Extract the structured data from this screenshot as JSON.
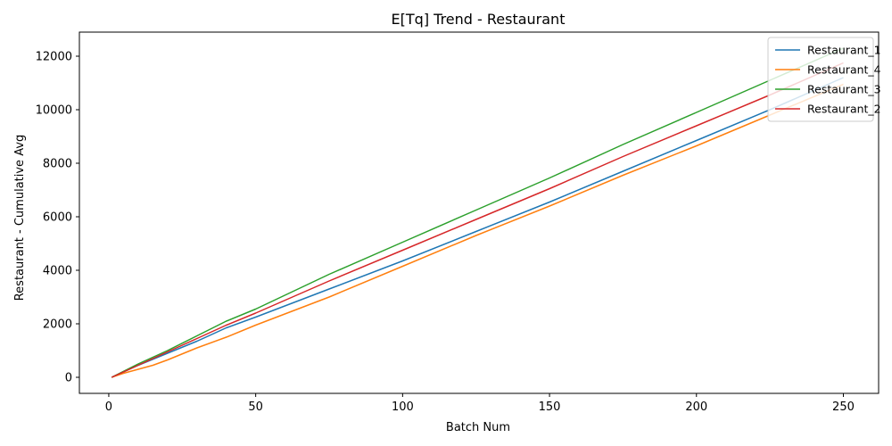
{
  "chart_data": {
    "type": "line",
    "title": "E[Tq] Trend - Restaurant",
    "xlabel": "Batch Num",
    "ylabel": "Restaurant - Cumulative Avg",
    "xlim": [
      -10,
      262
    ],
    "ylim": [
      -600,
      12900
    ],
    "xticks": [
      0,
      50,
      100,
      150,
      200,
      250
    ],
    "yticks": [
      0,
      2000,
      4000,
      6000,
      8000,
      10000,
      12000
    ],
    "grid": false,
    "legend_position": "top-right",
    "series": [
      {
        "name": "Restaurant_1",
        "color": "#1f77b4",
        "x": [
          1,
          10,
          20,
          30,
          40,
          50,
          75,
          100,
          125,
          150,
          175,
          200,
          225,
          250
        ],
        "y": [
          0,
          450,
          900,
          1350,
          1850,
          2250,
          3300,
          4350,
          5450,
          6550,
          7700,
          8850,
          10000,
          11200
        ]
      },
      {
        "name": "Restaurant_4",
        "color": "#ff7f0e",
        "x": [
          1,
          5,
          10,
          15,
          20,
          30,
          40,
          50,
          75,
          100,
          125,
          150,
          175,
          200,
          225,
          250
        ],
        "y": [
          0,
          150,
          300,
          450,
          650,
          1100,
          1500,
          1950,
          3000,
          4150,
          5300,
          6400,
          7550,
          8650,
          9800,
          10950
        ]
      },
      {
        "name": "Restaurant_3",
        "color": "#2ca02c",
        "x": [
          1,
          10,
          20,
          30,
          40,
          50,
          75,
          100,
          125,
          150,
          175,
          200,
          225,
          250
        ],
        "y": [
          0,
          500,
          1000,
          1550,
          2100,
          2550,
          3850,
          5050,
          6250,
          7450,
          8700,
          9900,
          11100,
          12300
        ]
      },
      {
        "name": "Restaurant_2",
        "color": "#d62728",
        "x": [
          1,
          10,
          20,
          30,
          40,
          50,
          75,
          100,
          125,
          150,
          175,
          200,
          225,
          250
        ],
        "y": [
          0,
          450,
          950,
          1450,
          1950,
          2400,
          3600,
          4750,
          5900,
          7050,
          8250,
          9400,
          10550,
          11750
        ]
      }
    ]
  }
}
